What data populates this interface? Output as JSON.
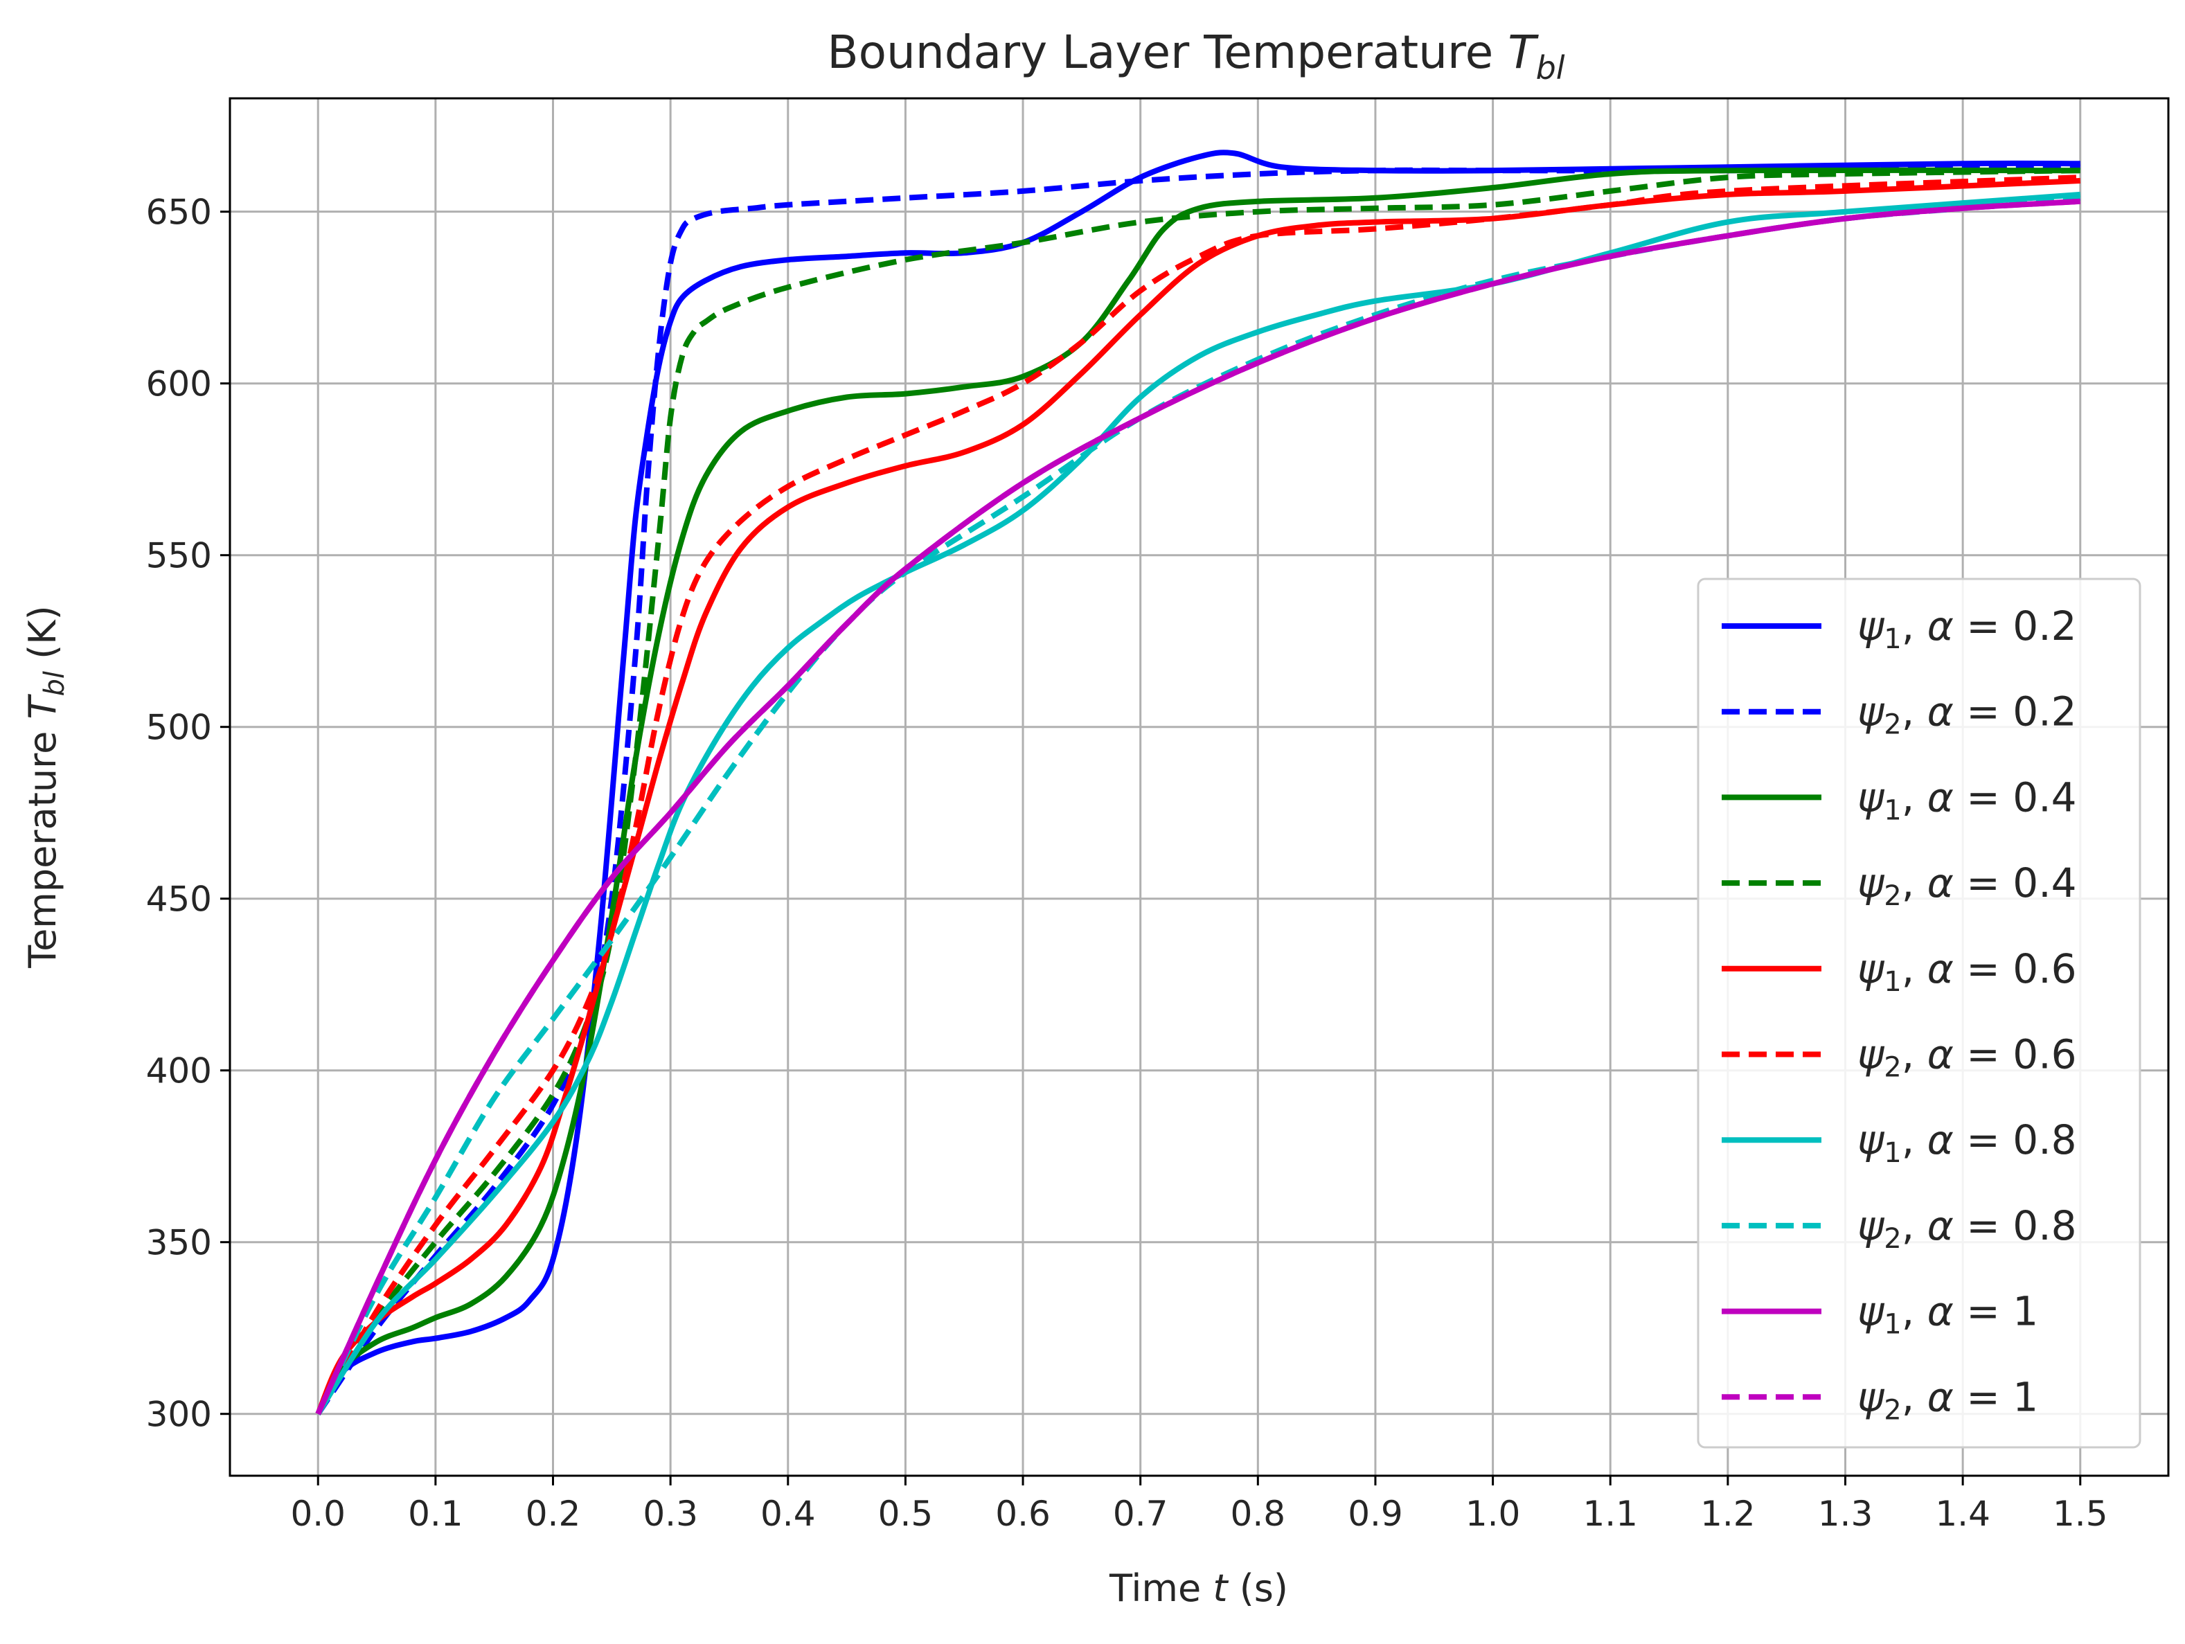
{
  "chart_data": {
    "type": "line",
    "title": "Boundary Layer Temperature T_bl",
    "title_parts": {
      "text": "Boundary Layer Temperature ",
      "var": "T",
      "sub": "bl"
    },
    "xlabel": "Time t (s)",
    "xlabel_parts": {
      "pre": "Time ",
      "var": "t",
      "post": " (s)"
    },
    "ylabel": "Temperature T_bl (K)",
    "ylabel_parts": {
      "pre": "Temperature ",
      "var": "T",
      "sub": "bl",
      "post": " (K)"
    },
    "xlim": [
      -0.075,
      1.575
    ],
    "ylim": [
      282,
      683
    ],
    "xticks": [
      0.0,
      0.1,
      0.2,
      0.3,
      0.4,
      0.5,
      0.6,
      0.7,
      0.8,
      0.9,
      1.0,
      1.1,
      1.2,
      1.3,
      1.4,
      1.5
    ],
    "xtick_labels": [
      "0.0",
      "0.1",
      "0.2",
      "0.3",
      "0.4",
      "0.5",
      "0.6",
      "0.7",
      "0.8",
      "0.9",
      "1.0",
      "1.1",
      "1.2",
      "1.3",
      "1.4",
      "1.5"
    ],
    "yticks": [
      300,
      350,
      400,
      450,
      500,
      550,
      600,
      650
    ],
    "ytick_labels": [
      "300",
      "350",
      "400",
      "450",
      "500",
      "550",
      "600",
      "650"
    ],
    "grid": true,
    "legend_position": "lower-right",
    "series": [
      {
        "name": "ψ1, α = 0.2",
        "psi": "ψ",
        "psi_sub": "1",
        "alpha": "0.2",
        "color": "#0000ff",
        "dash": false,
        "x": [
          0,
          0.02,
          0.05,
          0.08,
          0.1,
          0.13,
          0.16,
          0.18,
          0.2,
          0.22,
          0.24,
          0.26,
          0.27,
          0.28,
          0.29,
          0.3,
          0.31,
          0.33,
          0.36,
          0.4,
          0.45,
          0.5,
          0.55,
          0.6,
          0.65,
          0.7,
          0.75,
          0.78,
          0.82,
          0.9,
          1.0,
          1.2,
          1.4,
          1.5
        ],
        "y": [
          300,
          312,
          318,
          321,
          322,
          324,
          328,
          333,
          345,
          380,
          440,
          520,
          560,
          585,
          605,
          618,
          625,
          630,
          634,
          636,
          637,
          638,
          638,
          641,
          650,
          660,
          666,
          667,
          663,
          662,
          662,
          663,
          664,
          664
        ]
      },
      {
        "name": "ψ2, α = 0.2",
        "psi": "ψ",
        "psi_sub": "2",
        "alpha": "0.2",
        "color": "#0000ff",
        "dash": true,
        "x": [
          0,
          0.05,
          0.1,
          0.15,
          0.2,
          0.23,
          0.25,
          0.27,
          0.28,
          0.29,
          0.3,
          0.31,
          0.32,
          0.34,
          0.37,
          0.4,
          0.5,
          0.6,
          0.7,
          0.8,
          0.9,
          1.0,
          1.2,
          1.5
        ],
        "y": [
          300,
          325,
          346,
          366,
          390,
          415,
          450,
          520,
          570,
          610,
          635,
          645,
          648,
          650,
          651,
          652,
          654,
          656,
          659,
          661,
          662,
          662,
          662,
          663
        ]
      },
      {
        "name": "ψ1, α = 0.4",
        "psi": "ψ",
        "psi_sub": "1",
        "alpha": "0.4",
        "color": "#008000",
        "dash": false,
        "x": [
          0,
          0.02,
          0.05,
          0.08,
          0.1,
          0.13,
          0.16,
          0.19,
          0.21,
          0.23,
          0.25,
          0.27,
          0.29,
          0.31,
          0.33,
          0.36,
          0.4,
          0.45,
          0.5,
          0.55,
          0.6,
          0.65,
          0.69,
          0.72,
          0.75,
          0.8,
          0.9,
          1.0,
          1.1,
          1.2,
          1.5
        ],
        "y": [
          300,
          313,
          321,
          325,
          328,
          332,
          340,
          355,
          375,
          405,
          445,
          490,
          527,
          555,
          573,
          586,
          592,
          596,
          597,
          599,
          602,
          612,
          630,
          645,
          651,
          653,
          654,
          657,
          661,
          662,
          662
        ]
      },
      {
        "name": "ψ2, α = 0.4",
        "psi": "ψ",
        "psi_sub": "2",
        "alpha": "0.4",
        "color": "#008000",
        "dash": true,
        "x": [
          0,
          0.05,
          0.1,
          0.15,
          0.2,
          0.23,
          0.25,
          0.27,
          0.29,
          0.3,
          0.31,
          0.32,
          0.33,
          0.35,
          0.4,
          0.5,
          0.6,
          0.7,
          0.8,
          0.9,
          1.0,
          1.1,
          1.2,
          1.3,
          1.5
        ],
        "y": [
          300,
          328,
          350,
          370,
          393,
          415,
          440,
          490,
          555,
          590,
          608,
          615,
          618,
          622,
          628,
          636,
          641,
          647,
          650,
          651,
          652,
          656,
          660,
          661,
          662
        ]
      },
      {
        "name": "ψ1, α = 0.6",
        "psi": "ψ",
        "psi_sub": "1",
        "alpha": "0.6",
        "color": "#ff0000",
        "dash": false,
        "x": [
          0,
          0.02,
          0.05,
          0.08,
          0.1,
          0.13,
          0.16,
          0.19,
          0.21,
          0.23,
          0.25,
          0.27,
          0.29,
          0.31,
          0.33,
          0.36,
          0.4,
          0.45,
          0.5,
          0.55,
          0.6,
          0.65,
          0.7,
          0.75,
          0.8,
          0.85,
          0.9,
          1.0,
          1.1,
          1.2,
          1.3,
          1.5
        ],
        "y": [
          300,
          316,
          327,
          334,
          338,
          345,
          355,
          372,
          392,
          415,
          440,
          465,
          490,
          513,
          533,
          552,
          564,
          571,
          576,
          580,
          588,
          603,
          620,
          635,
          643,
          646,
          647,
          648,
          652,
          655,
          656,
          659
        ]
      },
      {
        "name": "ψ2, α = 0.6",
        "psi": "ψ",
        "psi_sub": "2",
        "alpha": "0.6",
        "color": "#ff0000",
        "dash": true,
        "x": [
          0,
          0.05,
          0.1,
          0.15,
          0.2,
          0.23,
          0.25,
          0.27,
          0.29,
          0.31,
          0.33,
          0.36,
          0.4,
          0.45,
          0.5,
          0.55,
          0.6,
          0.65,
          0.7,
          0.75,
          0.8,
          0.9,
          1.0,
          1.1,
          1.2,
          1.5
        ],
        "y": [
          300,
          330,
          355,
          377,
          400,
          420,
          440,
          470,
          505,
          532,
          548,
          560,
          570,
          578,
          585,
          592,
          600,
          612,
          627,
          637,
          643,
          645,
          648,
          652,
          656,
          660
        ]
      },
      {
        "name": "ψ1, α = 0.8",
        "psi": "ψ",
        "psi_sub": "1",
        "alpha": "0.8",
        "color": "#00bfbf",
        "dash": false,
        "x": [
          0,
          0.05,
          0.1,
          0.15,
          0.2,
          0.23,
          0.25,
          0.27,
          0.29,
          0.31,
          0.34,
          0.37,
          0.4,
          0.43,
          0.46,
          0.5,
          0.55,
          0.6,
          0.65,
          0.7,
          0.75,
          0.8,
          0.85,
          0.9,
          1.0,
          1.1,
          1.2,
          1.3,
          1.5
        ],
        "y": [
          300,
          327,
          345,
          364,
          385,
          403,
          420,
          440,
          460,
          478,
          497,
          512,
          523,
          531,
          538,
          545,
          553,
          563,
          578,
          596,
          608,
          615,
          620,
          624,
          629,
          638,
          647,
          650,
          655
        ]
      },
      {
        "name": "ψ2, α = 0.8",
        "psi": "ψ",
        "psi_sub": "2",
        "alpha": "0.8",
        "color": "#00bfbf",
        "dash": true,
        "x": [
          0,
          0.05,
          0.1,
          0.15,
          0.2,
          0.25,
          0.3,
          0.35,
          0.4,
          0.45,
          0.5,
          0.6,
          0.7,
          0.8,
          0.9,
          1.0,
          1.1,
          1.2,
          1.3,
          1.4,
          1.5
        ],
        "y": [
          300,
          335,
          363,
          392,
          415,
          438,
          462,
          487,
          510,
          530,
          545,
          567,
          590,
          607,
          620,
          630,
          637,
          643,
          648,
          651,
          654
        ]
      },
      {
        "name": "ψ1, α = 1",
        "psi": "ψ",
        "psi_sub": "1",
        "alpha": "1",
        "color": "#bf00bf",
        "dash": false,
        "x": [
          0,
          0.05,
          0.1,
          0.15,
          0.2,
          0.25,
          0.3,
          0.35,
          0.4,
          0.45,
          0.5,
          0.6,
          0.7,
          0.8,
          0.9,
          1.0,
          1.1,
          1.2,
          1.3,
          1.4,
          1.5
        ],
        "y": [
          300,
          338,
          374,
          405,
          432,
          456,
          475,
          495,
          512,
          530,
          546,
          571,
          590,
          606,
          619,
          629,
          637,
          643,
          648,
          651,
          653
        ]
      },
      {
        "name": "ψ2, α = 1",
        "psi": "ψ",
        "psi_sub": "2",
        "alpha": "1",
        "color": "#bf00bf",
        "dash": true,
        "x": [
          0,
          0.05,
          0.1,
          0.15,
          0.2,
          0.25,
          0.3,
          0.35,
          0.4,
          0.45,
          0.5,
          0.6,
          0.7,
          0.8,
          0.9,
          1.0,
          1.1,
          1.2,
          1.3,
          1.4,
          1.5
        ],
        "y": [
          300,
          338,
          374,
          405,
          432,
          456,
          475,
          495,
          512,
          530,
          546,
          571,
          590,
          606,
          619,
          629,
          637,
          643,
          648,
          651,
          653
        ]
      }
    ]
  }
}
